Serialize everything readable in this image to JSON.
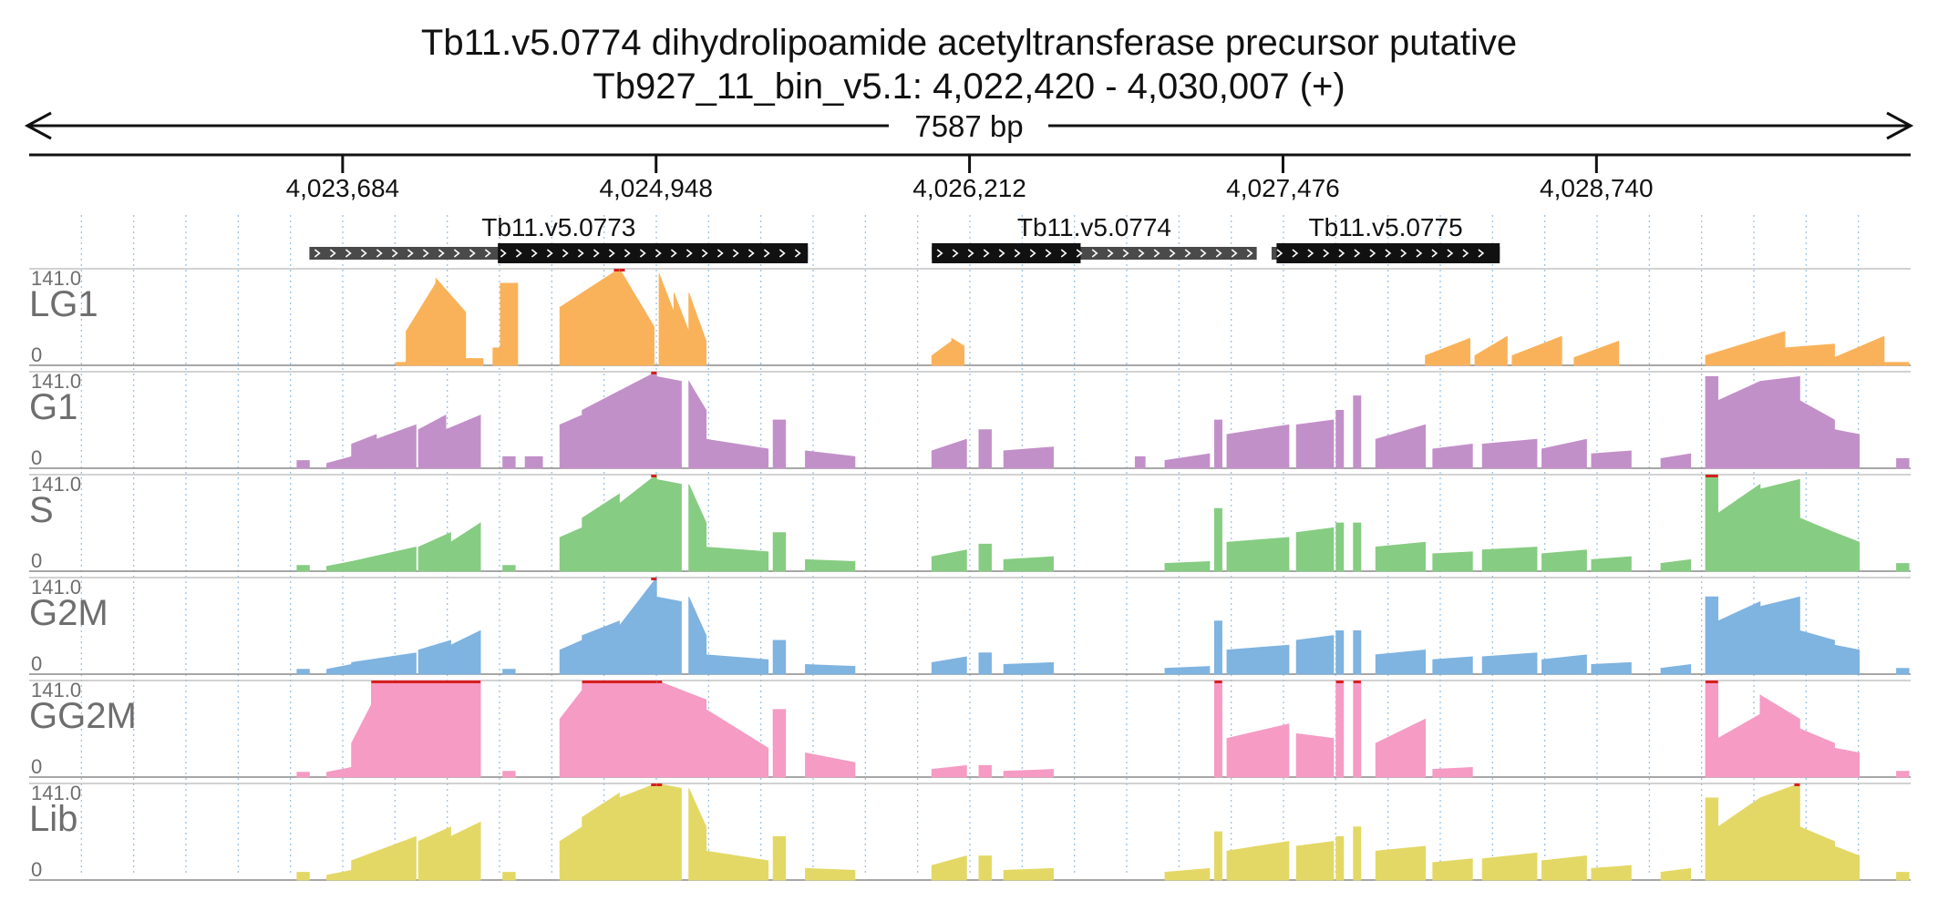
{
  "header": {
    "title": "Tb11.v5.0774  dihydrolipoamide acetyltransferase precursor  putative",
    "locus": "Tb927_11_bin_v5.1: 4,022,420 - 4,030,007 (+)",
    "span_label": "7587 bp"
  },
  "region": {
    "start": 4022420,
    "end": 4030007,
    "strand": "+"
  },
  "ruler": {
    "ticks": [
      {
        "pos": 4023684,
        "label": "4,023,684"
      },
      {
        "pos": 4024948,
        "label": "4,024,948"
      },
      {
        "pos": 4026212,
        "label": "4,026,212"
      },
      {
        "pos": 4027476,
        "label": "4,027,476"
      },
      {
        "pos": 4028740,
        "label": "4,028,740"
      }
    ]
  },
  "genes": [
    {
      "name": "Tb11.v5.0773",
      "start": 4023550,
      "end": 4024810,
      "cds_start": 4024310,
      "cds_end": 4025560
    },
    {
      "name": "Tb11.v5.0774",
      "start": 4026060,
      "end": 4027370,
      "cds_start": 4026060,
      "cds_end": 4026660
    },
    {
      "name": "Tb11.v5.0775",
      "start": 4027430,
      "end": 4028350,
      "cds_start": 4027450,
      "cds_end": 4028350
    }
  ],
  "tracks": [
    {
      "name": "LG1",
      "max_label": "141.0",
      "min_label": "0",
      "color": "#f9b25a",
      "peaks": [
        [
          4023900,
          4024060,
          0.03,
          0.03
        ],
        [
          4023940,
          4024060,
          0.35,
          0.85
        ],
        [
          4024060,
          4024180,
          0.9,
          0.55
        ],
        [
          4024180,
          4024250,
          0.07,
          0.07
        ],
        [
          4024290,
          4024320,
          0.18,
          0.18
        ],
        [
          4024320,
          4024390,
          0.85,
          0.85
        ],
        [
          4024560,
          4024800,
          0.6,
          1.0
        ],
        [
          4024800,
          4024940,
          1.0,
          0.4
        ],
        [
          4024960,
          4025020,
          0.95,
          0.55
        ],
        [
          4025020,
          4025080,
          0.75,
          0.35
        ],
        [
          4025080,
          4025150,
          0.75,
          0.25
        ],
        [
          4026060,
          4026140,
          0.1,
          0.25
        ],
        [
          4026140,
          4026190,
          0.28,
          0.2
        ],
        [
          4028050,
          4028230,
          0.1,
          0.28
        ],
        [
          4028250,
          4028380,
          0.1,
          0.3
        ],
        [
          4028400,
          4028600,
          0.1,
          0.3
        ],
        [
          4028650,
          4028830,
          0.08,
          0.25
        ],
        [
          4029180,
          4029500,
          0.1,
          0.35
        ],
        [
          4029500,
          4029700,
          0.18,
          0.22
        ],
        [
          4029700,
          4029900,
          0.08,
          0.3
        ],
        [
          4029900,
          4030000,
          0.03,
          0.03
        ]
      ]
    },
    {
      "name": "G1",
      "max_label": "141.0",
      "min_label": "0",
      "color": "#c290c8",
      "peaks": [
        [
          4023500,
          4023550,
          0.08,
          0.08
        ],
        [
          4023620,
          4023720,
          0.05,
          0.12
        ],
        [
          4023720,
          4023820,
          0.25,
          0.35
        ],
        [
          4023820,
          4023980,
          0.3,
          0.45
        ],
        [
          4023990,
          4024100,
          0.4,
          0.55
        ],
        [
          4024100,
          4024240,
          0.4,
          0.55
        ],
        [
          4024330,
          4024380,
          0.12,
          0.12
        ],
        [
          4024420,
          4024490,
          0.12,
          0.12
        ],
        [
          4024560,
          4024650,
          0.45,
          0.55
        ],
        [
          4024650,
          4024800,
          0.6,
          0.8
        ],
        [
          4024800,
          4024950,
          0.8,
          1.0
        ],
        [
          4024950,
          4025050,
          0.95,
          0.9
        ],
        [
          4025080,
          4025150,
          0.9,
          0.6
        ],
        [
          4025150,
          4025400,
          0.3,
          0.2
        ],
        [
          4025420,
          4025470,
          0.5,
          0.5
        ],
        [
          4025550,
          4025750,
          0.18,
          0.12
        ],
        [
          4026060,
          4026200,
          0.18,
          0.3
        ],
        [
          4026250,
          4026300,
          0.4,
          0.4
        ],
        [
          4026350,
          4026550,
          0.18,
          0.22
        ],
        [
          4026880,
          4026920,
          0.12,
          0.12
        ],
        [
          4027000,
          4027180,
          0.08,
          0.15
        ],
        [
          4027200,
          4027230,
          0.5,
          0.5
        ],
        [
          4027250,
          4027500,
          0.35,
          0.45
        ],
        [
          4027530,
          4027680,
          0.45,
          0.5
        ],
        [
          4027690,
          4027720,
          0.6,
          0.6
        ],
        [
          4027760,
          4027790,
          0.75,
          0.75
        ],
        [
          4027850,
          4028050,
          0.3,
          0.45
        ],
        [
          4028080,
          4028240,
          0.2,
          0.25
        ],
        [
          4028280,
          4028500,
          0.25,
          0.3
        ],
        [
          4028520,
          4028700,
          0.2,
          0.3
        ],
        [
          4028720,
          4028880,
          0.15,
          0.18
        ],
        [
          4029000,
          4029120,
          0.1,
          0.15
        ],
        [
          4029180,
          4029230,
          0.95,
          0.95
        ],
        [
          4029230,
          4029400,
          0.7,
          0.9
        ],
        [
          4029400,
          4029560,
          0.9,
          0.95
        ],
        [
          4029560,
          4029700,
          0.7,
          0.5
        ],
        [
          4029700,
          4029800,
          0.4,
          0.35
        ],
        [
          4029950,
          4030000,
          0.1,
          0.1
        ]
      ]
    },
    {
      "name": "S",
      "max_label": "141.0",
      "min_label": "0",
      "color": "#86cc82",
      "peaks": [
        [
          4023500,
          4023550,
          0.06,
          0.06
        ],
        [
          4023620,
          4023720,
          0.05,
          0.1
        ],
        [
          4023720,
          4023980,
          0.1,
          0.25
        ],
        [
          4023990,
          4024120,
          0.25,
          0.4
        ],
        [
          4024120,
          4024240,
          0.3,
          0.5
        ],
        [
          4024330,
          4024380,
          0.06,
          0.06
        ],
        [
          4024560,
          4024650,
          0.35,
          0.45
        ],
        [
          4024650,
          4024800,
          0.55,
          0.8
        ],
        [
          4024800,
          4024950,
          0.7,
          1.0
        ],
        [
          4024950,
          4025050,
          0.95,
          0.9
        ],
        [
          4025080,
          4025150,
          0.9,
          0.5
        ],
        [
          4025150,
          4025400,
          0.25,
          0.2
        ],
        [
          4025420,
          4025470,
          0.4,
          0.4
        ],
        [
          4025550,
          4025750,
          0.12,
          0.1
        ],
        [
          4026060,
          4026200,
          0.15,
          0.22
        ],
        [
          4026250,
          4026300,
          0.28,
          0.28
        ],
        [
          4026350,
          4026550,
          0.12,
          0.15
        ],
        [
          4027000,
          4027180,
          0.08,
          0.1
        ],
        [
          4027200,
          4027230,
          0.65,
          0.65
        ],
        [
          4027250,
          4027500,
          0.3,
          0.35
        ],
        [
          4027530,
          4027680,
          0.4,
          0.45
        ],
        [
          4027690,
          4027720,
          0.5,
          0.5
        ],
        [
          4027760,
          4027790,
          0.5,
          0.5
        ],
        [
          4027850,
          4028050,
          0.25,
          0.3
        ],
        [
          4028080,
          4028240,
          0.18,
          0.2
        ],
        [
          4028280,
          4028500,
          0.22,
          0.25
        ],
        [
          4028520,
          4028700,
          0.18,
          0.22
        ],
        [
          4028720,
          4028880,
          0.12,
          0.15
        ],
        [
          4029000,
          4029120,
          0.08,
          0.12
        ],
        [
          4029180,
          4029230,
          1.0,
          1.0
        ],
        [
          4029230,
          4029400,
          0.6,
          0.9
        ],
        [
          4029400,
          4029560,
          0.85,
          0.95
        ],
        [
          4029560,
          4029700,
          0.55,
          0.4
        ],
        [
          4029700,
          4029800,
          0.4,
          0.3
        ],
        [
          4029950,
          4030000,
          0.08,
          0.08
        ]
      ]
    },
    {
      "name": "G2M",
      "max_label": "141.0",
      "min_label": "0",
      "color": "#7fb3e0",
      "peaks": [
        [
          4023500,
          4023550,
          0.05,
          0.05
        ],
        [
          4023620,
          4023720,
          0.05,
          0.1
        ],
        [
          4023720,
          4023980,
          0.12,
          0.22
        ],
        [
          4023990,
          4024120,
          0.25,
          0.35
        ],
        [
          4024120,
          4024240,
          0.3,
          0.45
        ],
        [
          4024330,
          4024380,
          0.05,
          0.05
        ],
        [
          4024560,
          4024650,
          0.25,
          0.35
        ],
        [
          4024650,
          4024800,
          0.4,
          0.55
        ],
        [
          4024800,
          4024950,
          0.5,
          1.0
        ],
        [
          4024950,
          4025050,
          0.8,
          0.75
        ],
        [
          4025080,
          4025150,
          0.8,
          0.4
        ],
        [
          4025150,
          4025400,
          0.2,
          0.15
        ],
        [
          4025420,
          4025470,
          0.35,
          0.35
        ],
        [
          4025550,
          4025750,
          0.1,
          0.08
        ],
        [
          4026060,
          4026200,
          0.12,
          0.18
        ],
        [
          4026250,
          4026300,
          0.22,
          0.22
        ],
        [
          4026350,
          4026550,
          0.1,
          0.12
        ],
        [
          4027000,
          4027180,
          0.06,
          0.08
        ],
        [
          4027200,
          4027230,
          0.55,
          0.55
        ],
        [
          4027250,
          4027500,
          0.25,
          0.3
        ],
        [
          4027530,
          4027680,
          0.35,
          0.4
        ],
        [
          4027690,
          4027720,
          0.45,
          0.45
        ],
        [
          4027760,
          4027790,
          0.45,
          0.45
        ],
        [
          4027850,
          4028050,
          0.2,
          0.25
        ],
        [
          4028080,
          4028240,
          0.15,
          0.18
        ],
        [
          4028280,
          4028500,
          0.18,
          0.22
        ],
        [
          4028520,
          4028700,
          0.15,
          0.2
        ],
        [
          4028720,
          4028880,
          0.1,
          0.12
        ],
        [
          4029000,
          4029120,
          0.06,
          0.1
        ],
        [
          4029180,
          4029230,
          0.8,
          0.8
        ],
        [
          4029230,
          4029400,
          0.55,
          0.75
        ],
        [
          4029400,
          4029560,
          0.7,
          0.8
        ],
        [
          4029560,
          4029700,
          0.45,
          0.35
        ],
        [
          4029700,
          4029800,
          0.3,
          0.25
        ],
        [
          4029950,
          4030000,
          0.06,
          0.06
        ]
      ]
    },
    {
      "name": "GG2M",
      "max_label": "141.0",
      "min_label": "0",
      "color": "#f59bc4",
      "peaks": [
        [
          4023500,
          4023550,
          0.05,
          0.05
        ],
        [
          4023620,
          4023720,
          0.05,
          0.1
        ],
        [
          4023720,
          4023800,
          0.35,
          0.75
        ],
        [
          4023800,
          4024240,
          1.0,
          1.0
        ],
        [
          4024330,
          4024380,
          0.06,
          0.06
        ],
        [
          4024560,
          4024650,
          0.6,
          0.9
        ],
        [
          4024650,
          4024950,
          1.0,
          1.0
        ],
        [
          4024950,
          4025150,
          1.0,
          0.8
        ],
        [
          4025150,
          4025400,
          0.7,
          0.3
        ],
        [
          4025420,
          4025470,
          0.7,
          0.7
        ],
        [
          4025550,
          4025750,
          0.25,
          0.15
        ],
        [
          4026060,
          4026200,
          0.08,
          0.12
        ],
        [
          4026250,
          4026300,
          0.12,
          0.12
        ],
        [
          4026350,
          4026550,
          0.06,
          0.08
        ],
        [
          4027200,
          4027230,
          1.0,
          1.0
        ],
        [
          4027250,
          4027500,
          0.4,
          0.55
        ],
        [
          4027530,
          4027680,
          0.45,
          0.4
        ],
        [
          4027690,
          4027720,
          1.0,
          1.0
        ],
        [
          4027760,
          4027790,
          1.0,
          1.0
        ],
        [
          4027850,
          4028050,
          0.35,
          0.6
        ],
        [
          4028080,
          4028240,
          0.08,
          0.1
        ],
        [
          4029180,
          4029230,
          1.0,
          1.0
        ],
        [
          4029230,
          4029400,
          0.4,
          0.65
        ],
        [
          4029400,
          4029560,
          0.85,
          0.6
        ],
        [
          4029560,
          4029700,
          0.5,
          0.35
        ],
        [
          4029700,
          4029800,
          0.3,
          0.25
        ],
        [
          4029950,
          4030000,
          0.06,
          0.06
        ]
      ]
    },
    {
      "name": "Lib",
      "max_label": "141.0",
      "min_label": "0",
      "color": "#e3d865",
      "peaks": [
        [
          4023500,
          4023550,
          0.08,
          0.08
        ],
        [
          4023620,
          4023720,
          0.05,
          0.1
        ],
        [
          4023720,
          4023980,
          0.2,
          0.45
        ],
        [
          4023990,
          4024120,
          0.4,
          0.55
        ],
        [
          4024120,
          4024240,
          0.45,
          0.6
        ],
        [
          4024330,
          4024380,
          0.08,
          0.08
        ],
        [
          4024560,
          4024650,
          0.4,
          0.55
        ],
        [
          4024650,
          4024800,
          0.65,
          0.9
        ],
        [
          4024800,
          4024950,
          0.85,
          1.0
        ],
        [
          4024950,
          4025050,
          1.0,
          0.95
        ],
        [
          4025080,
          4025150,
          0.95,
          0.55
        ],
        [
          4025150,
          4025400,
          0.3,
          0.2
        ],
        [
          4025420,
          4025470,
          0.45,
          0.45
        ],
        [
          4025550,
          4025750,
          0.12,
          0.1
        ],
        [
          4026060,
          4026200,
          0.15,
          0.25
        ],
        [
          4026250,
          4026300,
          0.25,
          0.25
        ],
        [
          4026350,
          4026550,
          0.1,
          0.12
        ],
        [
          4027000,
          4027180,
          0.08,
          0.12
        ],
        [
          4027200,
          4027230,
          0.5,
          0.5
        ],
        [
          4027250,
          4027500,
          0.3,
          0.4
        ],
        [
          4027530,
          4027680,
          0.35,
          0.4
        ],
        [
          4027690,
          4027720,
          0.45,
          0.45
        ],
        [
          4027760,
          4027790,
          0.55,
          0.55
        ],
        [
          4027850,
          4028050,
          0.3,
          0.35
        ],
        [
          4028080,
          4028240,
          0.18,
          0.22
        ],
        [
          4028280,
          4028500,
          0.22,
          0.28
        ],
        [
          4028520,
          4028700,
          0.2,
          0.25
        ],
        [
          4028720,
          4028880,
          0.12,
          0.15
        ],
        [
          4029000,
          4029120,
          0.08,
          0.12
        ],
        [
          4029180,
          4029230,
          0.85,
          0.85
        ],
        [
          4029230,
          4029400,
          0.55,
          0.85
        ],
        [
          4029400,
          4029560,
          0.85,
          1.0
        ],
        [
          4029560,
          4029700,
          0.55,
          0.4
        ],
        [
          4029700,
          4029800,
          0.35,
          0.25
        ],
        [
          4029950,
          4030000,
          0.08,
          0.08
        ]
      ]
    }
  ],
  "colors": {
    "text": "#111111",
    "label": "#6e6e6e",
    "gene_dark": "#111111",
    "gene_utr": "#4a4a4a",
    "grid": "#9cc3e6",
    "separator": "#b8b8b8",
    "clip": "#d62020"
  }
}
